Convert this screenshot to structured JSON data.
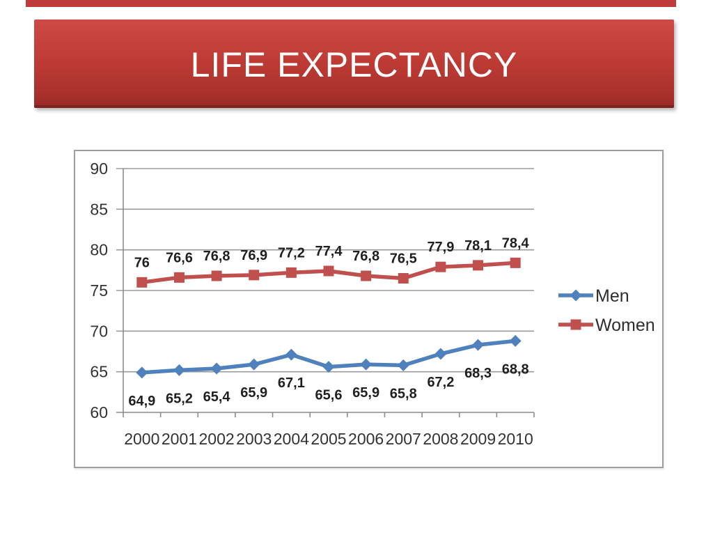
{
  "slide": {
    "title": "LIFE EXPECTANCY"
  },
  "colors": {
    "banner_red": "#c03c36",
    "banner_red_dark": "#7e2420",
    "top_strip_red": "#bf3a3a",
    "men_blue": "#4F81BD",
    "women_red": "#C0504D",
    "gridline_gray": "#9b9b9b",
    "axis_gray": "#8c8c8c",
    "chart_border_gray": "#9e9e9e",
    "axis_text": "#333333",
    "data_label_text": "#1f1f1f"
  },
  "chart_data": {
    "type": "line",
    "title": "",
    "xlabel": "",
    "ylabel": "",
    "categories": [
      "2000",
      "2001",
      "2002",
      "2003",
      "2004",
      "2005",
      "2006",
      "2007",
      "2008",
      "2009",
      "2010"
    ],
    "series": [
      {
        "name": "Men",
        "color": "#4F81BD",
        "marker": "diamond",
        "label_position": "below",
        "values": [
          64.9,
          65.2,
          65.4,
          65.9,
          67.1,
          65.6,
          65.9,
          65.8,
          67.2,
          68.3,
          68.8
        ],
        "labels": [
          "64,9",
          "65,2",
          "65,4",
          "65,9",
          "67,1",
          "65,6",
          "65,9",
          "65,8",
          "67,2",
          "68,3",
          "68,8"
        ]
      },
      {
        "name": "Women",
        "color": "#C0504D",
        "marker": "square",
        "label_position": "above",
        "values": [
          76,
          76.6,
          76.8,
          76.9,
          77.2,
          77.4,
          76.8,
          76.5,
          77.9,
          78.1,
          78.4
        ],
        "labels": [
          "76",
          "76,6",
          "76,8",
          "76,9",
          "77,2",
          "77,4",
          "76,8",
          "76,5",
          "77,9",
          "78,1",
          "78,4"
        ]
      }
    ],
    "ylim": [
      60,
      90
    ],
    "ytick_step": 5,
    "yticks": [
      "60",
      "65",
      "70",
      "75",
      "80",
      "85",
      "90"
    ],
    "grid": true,
    "legend_position": "right",
    "legend": [
      "Men",
      "Women"
    ],
    "decimal_separator": ","
  }
}
